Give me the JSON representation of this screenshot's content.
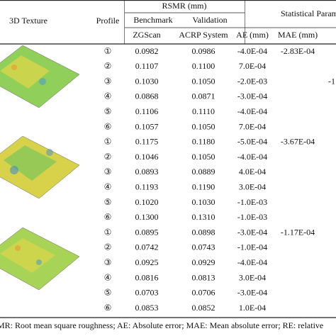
{
  "header": {
    "texture": "3D Texture",
    "profile": "Profile",
    "rsmr": "RSMR (mm)",
    "benchmark": "Benchmark",
    "validation": "Validation",
    "zgscan": "ZGScan",
    "acrp": "ACRP System",
    "ae": "AE (mm)",
    "stats": "Statistical Param",
    "mae": "MAE (mm)"
  },
  "rows": [
    {
      "profile": "①",
      "zgscan": "0.0982",
      "acrp": "0.0986",
      "ae": "-4.0E-04",
      "mae": "-2.83E-04"
    },
    {
      "profile": "②",
      "zgscan": "0.1107",
      "acrp": "0.1100",
      "ae": "7.0E-04"
    },
    {
      "profile": "③",
      "zgscan": "0.1030",
      "acrp": "0.1050",
      "ae": "-2.0E-03",
      "re": "-1"
    },
    {
      "profile": "④",
      "zgscan": "0.0868",
      "acrp": "0.0871",
      "ae": "-3.0E-04"
    },
    {
      "profile": "⑤",
      "zgscan": "0.1106",
      "acrp": "0.1110",
      "ae": "-4.0E-04"
    },
    {
      "profile": "⑥",
      "zgscan": "0.1057",
      "acrp": "0.1050",
      "ae": "7.0E-04"
    },
    {
      "profile": "①",
      "zgscan": "0.1175",
      "acrp": "0.1180",
      "ae": "-5.0E-04",
      "mae": "-3.67E-04"
    },
    {
      "profile": "②",
      "zgscan": "0.1046",
      "acrp": "0.1050",
      "ae": "-4.0E-04"
    },
    {
      "profile": "③",
      "zgscan": "0.0893",
      "acrp": "0.0889",
      "ae": "4.0E-04"
    },
    {
      "profile": "④",
      "zgscan": "0.1193",
      "acrp": "0.1190",
      "ae": "3.0E-04"
    },
    {
      "profile": "⑤",
      "zgscan": "0.1020",
      "acrp": "0.1030",
      "ae": "-1.0E-03"
    },
    {
      "profile": "⑥",
      "zgscan": "0.1300",
      "acrp": "0.1310",
      "ae": "-1.0E-03"
    },
    {
      "profile": "①",
      "zgscan": "0.0895",
      "acrp": "0.0898",
      "ae": "-3.0E-04",
      "mae": "-1.17E-04"
    },
    {
      "profile": "②",
      "zgscan": "0.0742",
      "acrp": "0.0743",
      "ae": "-1.0E-04"
    },
    {
      "profile": "③",
      "zgscan": "0.0925",
      "acrp": "0.0929",
      "ae": "-4.0E-04"
    },
    {
      "profile": "④",
      "zgscan": "0.0816",
      "acrp": "0.0813",
      "ae": "3.0E-04"
    },
    {
      "profile": "⑤",
      "zgscan": "0.0703",
      "acrp": "0.0706",
      "ae": "-3.0E-04"
    },
    {
      "profile": "⑥",
      "zgscan": "0.0853",
      "acrp": "0.0852",
      "ae": "1.0E-04"
    }
  ],
  "footnote": "MR: Root mean square roughness; AE: Absolute error; MAE: Mean absolute error; RE: relative"
}
